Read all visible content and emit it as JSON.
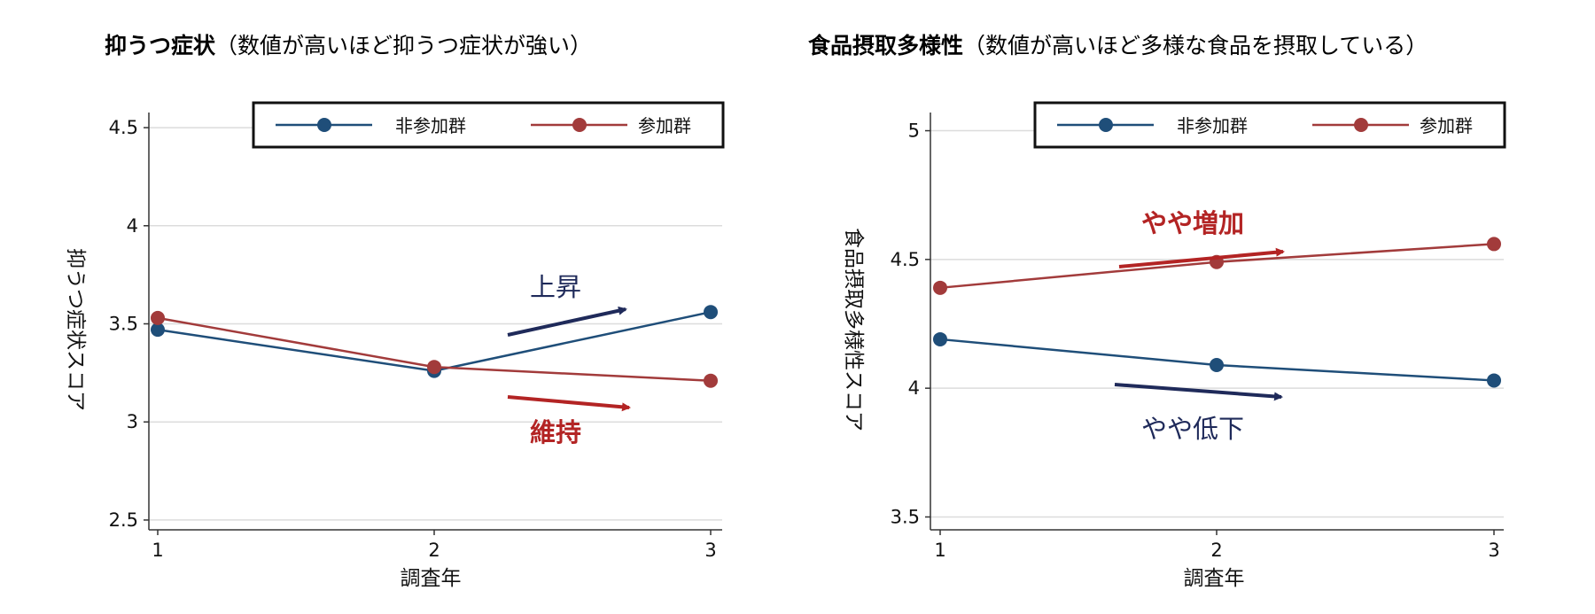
{
  "colors": {
    "blue": "#1f4e79",
    "red": "#a23b3b",
    "navy": "#1f2a5a",
    "crimson": "#b32424"
  },
  "chart_data": [
    {
      "type": "line",
      "title": "抑うつ症状",
      "subtitle": "（数値が高いほど抑うつ症状が強い）",
      "xlabel": "調査年",
      "ylabel": "抑うつ症状スコア",
      "x": [
        1,
        2,
        3
      ],
      "x_ticks": [
        "1",
        "2",
        "3"
      ],
      "y_ticks": [
        "2.5",
        "3",
        "3.5",
        "4",
        "4.5"
      ],
      "ylim": [
        2.45,
        4.55
      ],
      "grid": true,
      "legend_position": "top",
      "series": [
        {
          "name": "非参加群",
          "color": "#1f4e79",
          "values": [
            3.47,
            3.26,
            3.56
          ]
        },
        {
          "name": "参加群",
          "color": "#a23b3b",
          "values": [
            3.53,
            3.28,
            3.21
          ]
        }
      ],
      "annotations": [
        {
          "text": "上昇",
          "color": "#1f2a5a",
          "bold": false
        },
        {
          "text": "維持",
          "color": "#b32424",
          "bold": true
        }
      ]
    },
    {
      "type": "line",
      "title": "食品摂取多様性",
      "subtitle": "（数値が高いほど多様な食品を摂取している）",
      "xlabel": "調査年",
      "ylabel": "食品摂取多様性スコア",
      "x": [
        1,
        2,
        3
      ],
      "x_ticks": [
        "1",
        "2",
        "3"
      ],
      "y_ticks": [
        "3.5",
        "4",
        "4.5",
        "5"
      ],
      "ylim": [
        3.45,
        5.05
      ],
      "grid": true,
      "legend_position": "top",
      "series": [
        {
          "name": "非参加群",
          "color": "#1f4e79",
          "values": [
            4.19,
            4.09,
            4.03
          ]
        },
        {
          "name": "参加群",
          "color": "#a23b3b",
          "values": [
            4.39,
            4.49,
            4.56
          ]
        }
      ],
      "annotations": [
        {
          "text": "やや増加",
          "color": "#b32424",
          "bold": true
        },
        {
          "text": "やや低下",
          "color": "#1f2a5a",
          "bold": false
        }
      ]
    }
  ]
}
